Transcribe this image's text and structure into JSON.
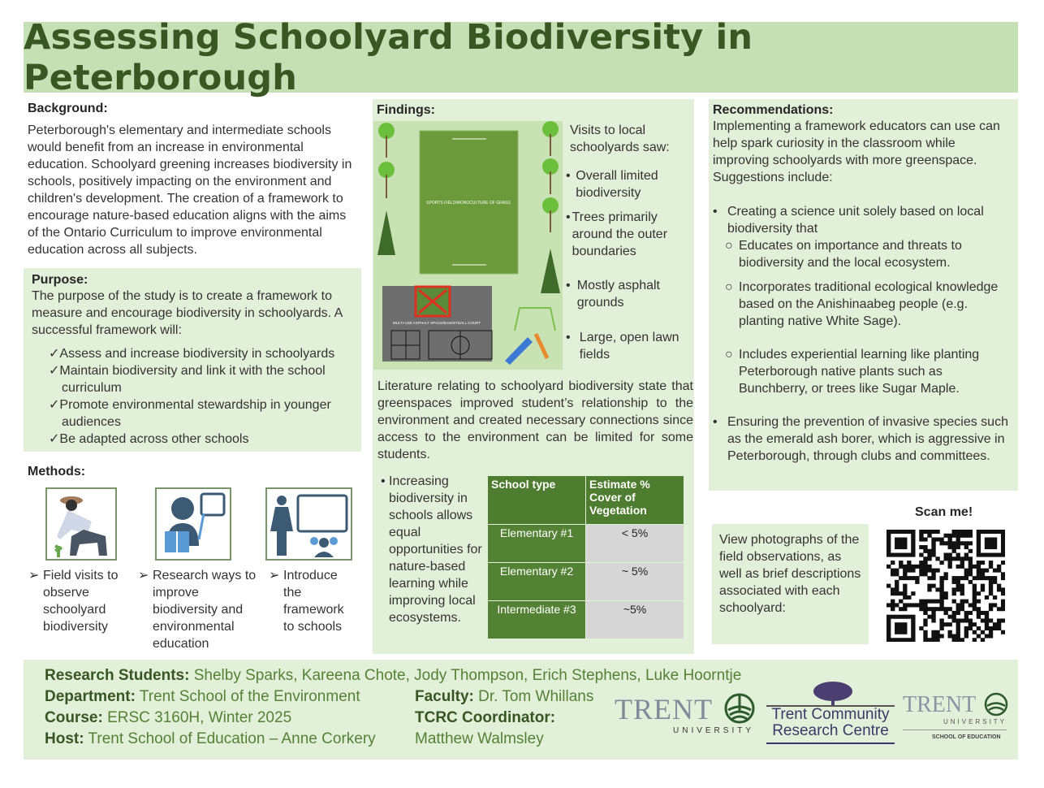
{
  "title": "Assessing Schoolyard Biodiversity in Peterborough",
  "background": {
    "heading": "Background:",
    "text": "Peterborough's elementary and intermediate schools would benefit from an increase in environmental education. Schoolyard greening increases biodiversity in schools, positively impacting on the environment and children's development. The creation of a framework to encourage nature-based education aligns with the aims of the Ontario Curriculum to improve environmental education across all subjects."
  },
  "purpose": {
    "heading": "Purpose:",
    "text": "The purpose of the study is to create a framework to measure and encourage biodiversity in schoolyards.  A successful framework will:",
    "items": [
      "Assess and increase biodiversity in schoolyards",
      "Maintain biodiversity and link it with the school curriculum",
      "Promote environmental stewardship in younger audiences",
      "Be adapted across other schools"
    ]
  },
  "methods": {
    "heading": "Methods:",
    "items": [
      {
        "icon": "gardener-icon",
        "label": "Field visits to observe schoolyard biodiversity"
      },
      {
        "icon": "student-reading-icon",
        "label": "Research ways to improve biodiversity and environmental education"
      },
      {
        "icon": "teacher-class-icon",
        "label": "Introduce the framework to schools"
      }
    ]
  },
  "findings": {
    "heading": "Findings:",
    "map_labels": {
      "field": "SPORTS FIELD/MONOCULTURE OF GRASS",
      "court": "MULTI-USE ASPHALT SPACE/BASKETBALL COURT"
    },
    "intro": "Visits to local schoolyards saw:",
    "items": [
      "Overall limited biodiversity",
      "Trees primarily around the outer boundaries",
      "Mostly asphalt grounds",
      "Large, open lawn fields"
    ],
    "literature": "Literature relating to schoolyard biodiversity state that greenspaces improved student’s relationship to the environment and created necessary connections since access to the environment can be limited for some students.",
    "side_bullet": "Increasing biodiversity in schools allows equal opportunities for nature-based learning while improving local ecosystems.",
    "table": {
      "headers": [
        "School type",
        "Estimate % Cover of Vegetation"
      ],
      "rows": [
        [
          "Elementary #1",
          "< 5%"
        ],
        [
          "Elementary #2",
          "~ 5%"
        ],
        [
          "Intermediate #3",
          "~5%"
        ]
      ]
    }
  },
  "recommendations": {
    "heading": "Recommendations:",
    "intro": "Implementing a framework educators can use can help spark curiosity in the classroom  while improving schoolyards with more greenspace. Suggestions include:",
    "items": [
      {
        "text": "Creating a science unit solely based on local biodiversity that",
        "sub": [
          "Educates on importance and threats to biodiversity and the local ecosystem.",
          "Incorporates traditional ecological knowledge based on the Anishinaabeg people (e.g. planting native White Sage).",
          "Includes experiential learning like planting Peterborough native plants such as Bunchberry, or trees like Sugar Maple."
        ]
      },
      {
        "text": "Ensuring the prevention of invasive species such as the emerald ash borer, which is aggressive in Peterborough, through clubs and committees.",
        "sub": []
      }
    ]
  },
  "scan": {
    "label": "Scan me!",
    "text": "View photographs of the field observations, as well as brief descriptions associated with each schoolyard:"
  },
  "footer": {
    "students_label": "Research Students:",
    "students": "Shelby Sparks, Kareena Chote, Jody Thompson, Erich Stephens, Luke Hoorntje",
    "department_label": "Department:",
    "department": "Trent School of the Environment",
    "course_label": "Course:",
    "course": "ERSC 3160H, Winter 2025",
    "host_label": "Host:",
    "host": "Trent School of Education – Anne Corkery",
    "faculty_label": "Faculty:",
    "faculty": "Dr. Tom Whillans",
    "coordinator_label": "TCRC Coordinator:",
    "coordinator": "Matthew Walmsley"
  },
  "logos": {
    "trent": "TRENT",
    "university": "UNIVERSITY",
    "tcrc_1": "Trent Community",
    "tcrc_2": "Research Centre",
    "school_of_education": "SCHOOL OF EDUCATION"
  },
  "colors": {
    "banner": "#c5e0b4",
    "panel": "#e2f0d9",
    "title": "#385723",
    "table_header": "#4f7d2f"
  }
}
